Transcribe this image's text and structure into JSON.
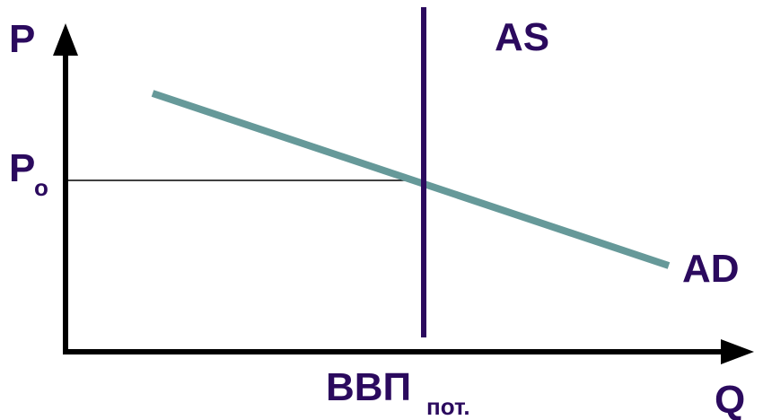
{
  "diagram": {
    "axis_y_label": "P",
    "axis_x_label": "Q",
    "price_level_label": "P",
    "price_level_subscript": "o",
    "as_label": "AS",
    "ad_label": "AD",
    "gdp_label": "ВВП",
    "gdp_subscript": "пот.",
    "colors": {
      "text": "#2b0a5e",
      "axis": "#000000",
      "as_line": "#2b0a5e",
      "ad_line": "#669999",
      "guide_line": "#000000"
    }
  }
}
